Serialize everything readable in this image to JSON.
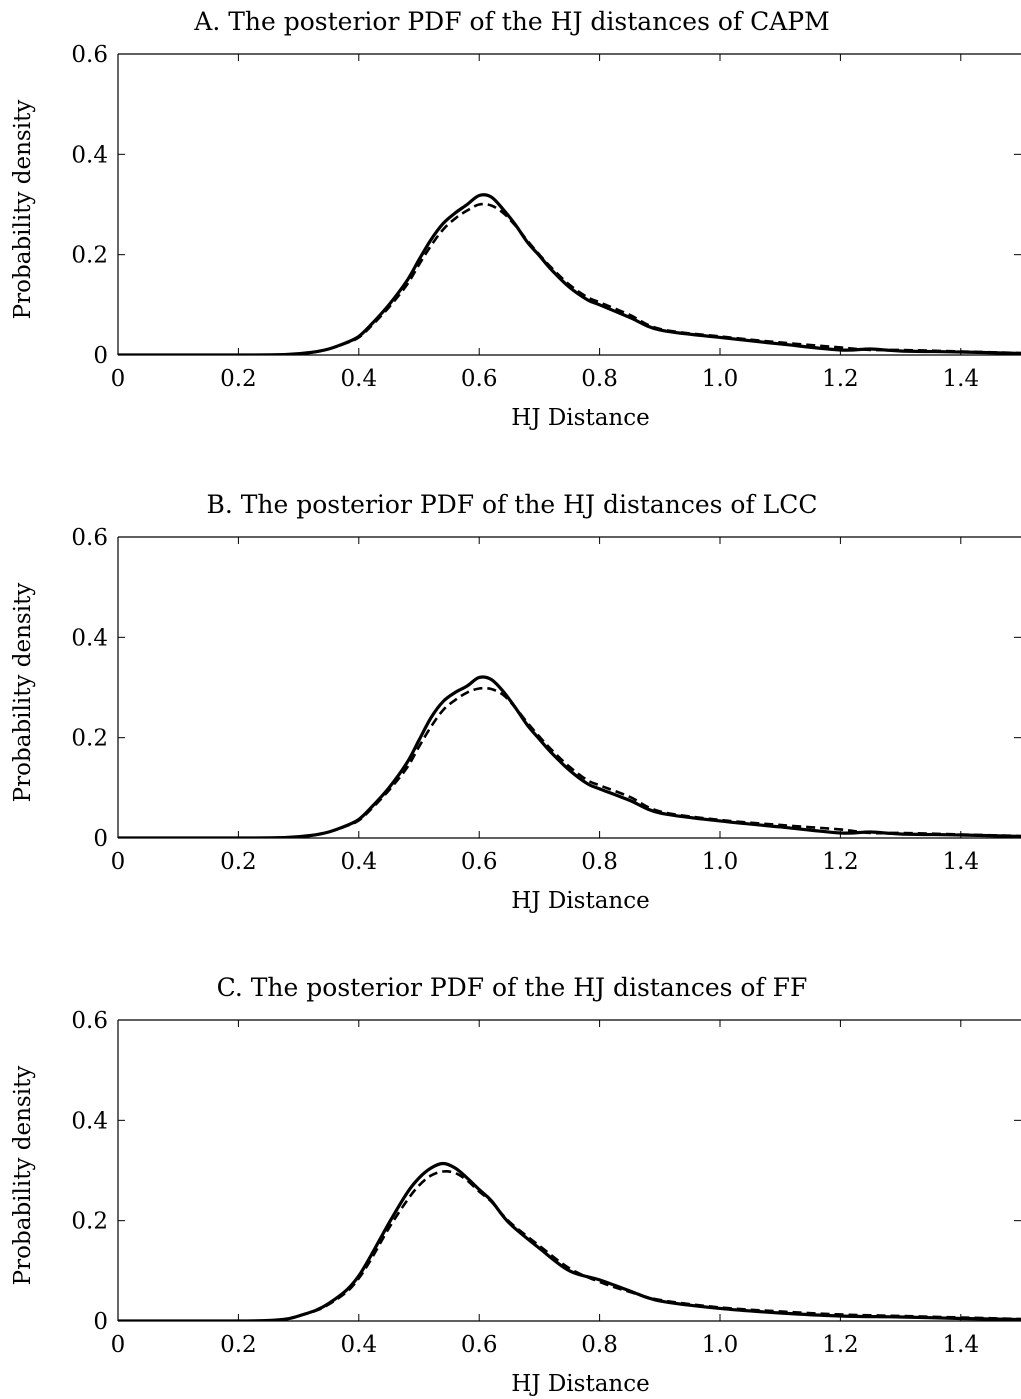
{
  "chart_data": [
    {
      "type": "line",
      "title": "A. The posterior PDF of the HJ distances of CAPM",
      "xlabel": "HJ Distance",
      "ylabel": "Probability density",
      "xlim": [
        0,
        1.5
      ],
      "ylim": [
        0,
        0.6
      ],
      "xticks": [
        "0",
        "0.2",
        "0.4",
        "0.6",
        "0.8",
        "1.0",
        "1.2",
        "1.4"
      ],
      "yticks": [
        "0",
        "0.2",
        "0.4",
        "0.6"
      ],
      "grid": false,
      "series": [
        {
          "style": "solid",
          "x": [
            0,
            0.1,
            0.2,
            0.28,
            0.32,
            0.35,
            0.38,
            0.4,
            0.42,
            0.45,
            0.48,
            0.5,
            0.52,
            0.54,
            0.56,
            0.58,
            0.6,
            0.62,
            0.64,
            0.66,
            0.68,
            0.7,
            0.72,
            0.75,
            0.78,
            0.8,
            0.85,
            0.9,
            1.0,
            1.1,
            1.2,
            1.25,
            1.3,
            1.4,
            1.5
          ],
          "y": [
            0,
            0,
            0,
            0.001,
            0.005,
            0.012,
            0.025,
            0.037,
            0.06,
            0.1,
            0.148,
            0.19,
            0.23,
            0.262,
            0.283,
            0.3,
            0.318,
            0.315,
            0.29,
            0.26,
            0.225,
            0.198,
            0.17,
            0.135,
            0.11,
            0.1,
            0.075,
            0.05,
            0.035,
            0.022,
            0.01,
            0.012,
            0.008,
            0.006,
            0.003
          ]
        },
        {
          "style": "dashed",
          "x": [
            0,
            0.1,
            0.2,
            0.28,
            0.32,
            0.35,
            0.38,
            0.4,
            0.42,
            0.45,
            0.48,
            0.5,
            0.52,
            0.54,
            0.56,
            0.58,
            0.6,
            0.62,
            0.64,
            0.66,
            0.68,
            0.7,
            0.72,
            0.75,
            0.78,
            0.8,
            0.85,
            0.9,
            1.0,
            1.1,
            1.2,
            1.25,
            1.3,
            1.4,
            1.5
          ],
          "y": [
            0,
            0,
            0,
            0.001,
            0.005,
            0.012,
            0.024,
            0.035,
            0.057,
            0.095,
            0.14,
            0.18,
            0.218,
            0.25,
            0.272,
            0.288,
            0.3,
            0.298,
            0.283,
            0.258,
            0.228,
            0.2,
            0.174,
            0.14,
            0.115,
            0.105,
            0.08,
            0.052,
            0.037,
            0.025,
            0.015,
            0.01,
            0.01,
            0.007,
            0.004
          ]
        }
      ]
    },
    {
      "type": "line",
      "title": "B. The posterior PDF of the HJ distances of LCC",
      "xlabel": "HJ Distance",
      "ylabel": "Probability density",
      "xlim": [
        0,
        1.5
      ],
      "ylim": [
        0,
        0.6
      ],
      "xticks": [
        "0",
        "0.2",
        "0.4",
        "0.6",
        "0.8",
        "1.0",
        "1.2",
        "1.4"
      ],
      "yticks": [
        "0",
        "0.2",
        "0.4",
        "0.6"
      ],
      "grid": false,
      "series": [
        {
          "style": "solid",
          "x": [
            0,
            0.1,
            0.2,
            0.28,
            0.32,
            0.35,
            0.38,
            0.4,
            0.42,
            0.45,
            0.48,
            0.5,
            0.52,
            0.54,
            0.56,
            0.58,
            0.6,
            0.62,
            0.64,
            0.66,
            0.68,
            0.7,
            0.72,
            0.75,
            0.78,
            0.8,
            0.85,
            0.9,
            1.0,
            1.1,
            1.2,
            1.25,
            1.3,
            1.4,
            1.5
          ],
          "y": [
            0,
            0,
            0,
            0.001,
            0.005,
            0.012,
            0.025,
            0.037,
            0.06,
            0.1,
            0.15,
            0.195,
            0.24,
            0.272,
            0.29,
            0.303,
            0.32,
            0.316,
            0.292,
            0.26,
            0.225,
            0.197,
            0.17,
            0.135,
            0.108,
            0.098,
            0.075,
            0.05,
            0.034,
            0.022,
            0.01,
            0.012,
            0.008,
            0.006,
            0.003
          ]
        },
        {
          "style": "dashed",
          "x": [
            0,
            0.1,
            0.2,
            0.28,
            0.32,
            0.35,
            0.38,
            0.4,
            0.42,
            0.45,
            0.48,
            0.5,
            0.52,
            0.54,
            0.56,
            0.58,
            0.6,
            0.62,
            0.64,
            0.66,
            0.68,
            0.7,
            0.72,
            0.75,
            0.78,
            0.8,
            0.85,
            0.9,
            1.0,
            1.1,
            1.2,
            1.25,
            1.3,
            1.4,
            1.5
          ],
          "y": [
            0,
            0,
            0,
            0.001,
            0.005,
            0.012,
            0.024,
            0.035,
            0.057,
            0.095,
            0.14,
            0.182,
            0.222,
            0.255,
            0.275,
            0.29,
            0.298,
            0.297,
            0.285,
            0.26,
            0.23,
            0.202,
            0.176,
            0.142,
            0.115,
            0.105,
            0.082,
            0.053,
            0.036,
            0.026,
            0.017,
            0.01,
            0.01,
            0.007,
            0.004
          ]
        }
      ]
    },
    {
      "type": "line",
      "title": "C. The posterior PDF of the HJ distances of FF",
      "xlabel": "HJ Distance",
      "ylabel": "Probability density",
      "xlim": [
        0,
        1.5
      ],
      "ylim": [
        0,
        0.6
      ],
      "xticks": [
        "0",
        "0.2",
        "0.4",
        "0.6",
        "0.8",
        "1.0",
        "1.2",
        "1.4"
      ],
      "yticks": [
        "0",
        "0.2",
        "0.4",
        "0.6"
      ],
      "grid": false,
      "series": [
        {
          "style": "solid",
          "x": [
            0,
            0.1,
            0.2,
            0.25,
            0.28,
            0.3,
            0.33,
            0.35,
            0.38,
            0.4,
            0.42,
            0.45,
            0.48,
            0.5,
            0.52,
            0.54,
            0.56,
            0.58,
            0.6,
            0.62,
            0.65,
            0.7,
            0.75,
            0.8,
            0.85,
            0.9,
            1.0,
            1.1,
            1.2,
            1.3,
            1.4,
            1.5
          ],
          "y": [
            0,
            0,
            0,
            0.001,
            0.004,
            0.01,
            0.022,
            0.035,
            0.062,
            0.09,
            0.13,
            0.195,
            0.255,
            0.285,
            0.305,
            0.314,
            0.305,
            0.285,
            0.262,
            0.24,
            0.195,
            0.145,
            0.1,
            0.082,
            0.06,
            0.04,
            0.025,
            0.016,
            0.01,
            0.008,
            0.005,
            0.003
          ]
        },
        {
          "style": "dashed",
          "x": [
            0,
            0.1,
            0.2,
            0.25,
            0.28,
            0.3,
            0.33,
            0.35,
            0.38,
            0.4,
            0.42,
            0.45,
            0.48,
            0.5,
            0.52,
            0.54,
            0.56,
            0.58,
            0.6,
            0.62,
            0.65,
            0.7,
            0.75,
            0.8,
            0.85,
            0.9,
            1.0,
            1.1,
            1.2,
            1.3,
            1.4,
            1.5
          ],
          "y": [
            0,
            0,
            0,
            0.001,
            0.004,
            0.01,
            0.021,
            0.033,
            0.058,
            0.085,
            0.122,
            0.185,
            0.24,
            0.27,
            0.29,
            0.298,
            0.295,
            0.28,
            0.258,
            0.238,
            0.198,
            0.15,
            0.105,
            0.078,
            0.058,
            0.042,
            0.027,
            0.019,
            0.013,
            0.01,
            0.007,
            0.004
          ]
        }
      ]
    }
  ]
}
